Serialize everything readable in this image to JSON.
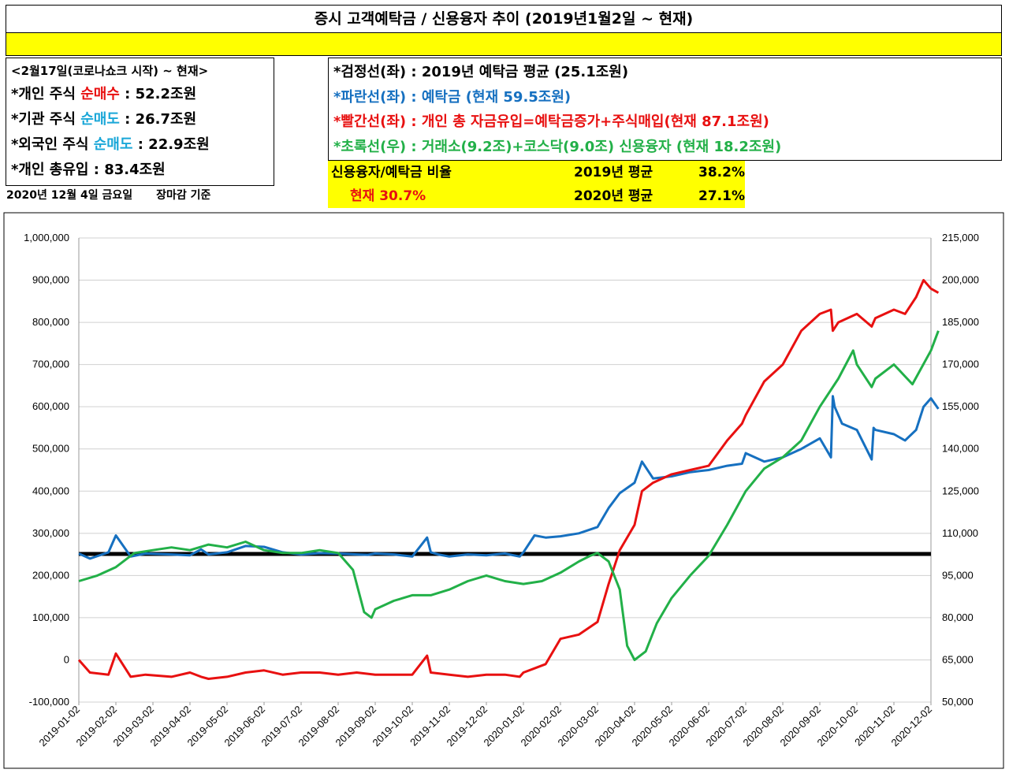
{
  "title": "증시 고객예탁금 / 신용융자 추이 (2019년1월2일 ~ 현재)",
  "left_info": {
    "header": "<2월17일(코로나쇼크 시작) ~ 현재>",
    "rows": [
      {
        "prefix": "*개인 주식 ",
        "highlight": "순매수",
        "suffix": " : 52.2조원",
        "color": "#e81010"
      },
      {
        "prefix": "*기관 주식 ",
        "highlight": "순매도",
        "suffix": " : 26.7조원",
        "color": "#1aa7d8"
      },
      {
        "prefix": "*외국인 주식 ",
        "highlight": "순매도",
        "suffix": " : 22.9조원",
        "color": "#1aa7d8"
      },
      {
        "prefix": "*개인 총유입 : 83.4조원",
        "highlight": "",
        "suffix": "",
        "color": "#000000"
      }
    ]
  },
  "date_line": {
    "date": "2020년 12월 4일 금요일",
    "basis": "장마감 기준"
  },
  "legend_lines": [
    {
      "text": "*검정선(좌) : 2019년 예탁금 평균 (25.1조원)",
      "color": "#000000"
    },
    {
      "text": "*파란선(좌) : 예탁금 (현재 59.5조원)",
      "color": "#1670c0"
    },
    {
      "text": "*빨간선(좌) : 개인 총 자금유입=예탁금증가+주식매입(현재 87.1조원)",
      "color": "#e81010"
    },
    {
      "text": "*초록선(우) : 거래소(9.2조)+코스닥(9.0조) 신용융자 (현재 18.2조원)",
      "color": "#22b048"
    }
  ],
  "ratio_box": {
    "label": "신용융자/예탁금 비율",
    "current": "현재  30.7%",
    "avg2019_label": "2019년 평균",
    "avg2019_value": "38.2%",
    "avg2020_label": "2020년 평균",
    "avg2020_value": "27.1%"
  },
  "chart_data": {
    "type": "line",
    "x_labels": [
      "2019-01-02",
      "2019-02-02",
      "2019-03-02",
      "2019-04-02",
      "2019-05-02",
      "2019-06-02",
      "2019-07-02",
      "2019-08-02",
      "2019-09-02",
      "2019-10-02",
      "2019-11-02",
      "2019-12-02",
      "2020-01-02",
      "2020-02-02",
      "2020-03-02",
      "2020-04-02",
      "2020-05-02",
      "2020-06-02",
      "2020-07-02",
      "2020-08-02",
      "2020-09-02",
      "2020-10-02",
      "2020-11-02",
      "2020-12-02"
    ],
    "y_left": {
      "min": -100000,
      "max": 1000000,
      "ticks": [
        "-100,000",
        "0",
        "100,000",
        "200,000",
        "300,000",
        "400,000",
        "500,000",
        "600,000",
        "700,000",
        "800,000",
        "900,000",
        "1,000,000"
      ]
    },
    "y_right": {
      "min": 50000,
      "max": 215000,
      "ticks": [
        "50,000",
        "65,000",
        "80,000",
        "95,000",
        "110,000",
        "125,000",
        "140,000",
        "155,000",
        "170,000",
        "185,000",
        "200,000",
        "215,000"
      ]
    },
    "reference": {
      "name": "2019년 예탁금 평균",
      "value": 251000,
      "color": "#000000"
    },
    "series": [
      {
        "axis": "left",
        "color": "#1670c0",
        "x": [
          0,
          0.3,
          0.8,
          1.0,
          1.4,
          1.8,
          2.5,
          3.0,
          3.3,
          3.5,
          4.0,
          4.5,
          5.0,
          5.5,
          6.0,
          6.5,
          7.0,
          7.5,
          7.8,
          8.0,
          8.5,
          9.0,
          9.4,
          9.5,
          9.7,
          10.0,
          10.5,
          11.0,
          11.5,
          11.9,
          12.0,
          12.3,
          12.6,
          13.0,
          13.5,
          14.0,
          14.3,
          14.6,
          15.0,
          15.2,
          15.5,
          16.0,
          16.5,
          17.0,
          17.5,
          17.9,
          18.0,
          18.5,
          19.0,
          19.5,
          20.0,
          20.3,
          20.35,
          20.4,
          20.6,
          21.0,
          21.4,
          21.45,
          21.5,
          22.0,
          22.3,
          22.6,
          22.8,
          23.0,
          23.2
        ],
        "y": [
          252000,
          240000,
          255000,
          295000,
          245000,
          252000,
          250000,
          248000,
          262000,
          250000,
          255000,
          270000,
          268000,
          255000,
          250000,
          253000,
          252000,
          250000,
          249000,
          252000,
          250000,
          245000,
          290000,
          255000,
          250000,
          245000,
          250000,
          248000,
          252000,
          245000,
          255000,
          295000,
          290000,
          293000,
          300000,
          315000,
          360000,
          395000,
          420000,
          470000,
          430000,
          435000,
          445000,
          450000,
          460000,
          465000,
          490000,
          470000,
          480000,
          500000,
          525000,
          480000,
          625000,
          600000,
          560000,
          545000,
          475000,
          550000,
          545000,
          535000,
          520000,
          545000,
          600000,
          620000,
          595000
        ]
      },
      {
        "axis": "left",
        "color": "#e81010",
        "x": [
          0,
          0.3,
          0.8,
          1.0,
          1.4,
          1.8,
          2.5,
          3.0,
          3.3,
          3.5,
          4.0,
          4.5,
          5.0,
          5.5,
          6.0,
          6.5,
          7.0,
          7.5,
          8.0,
          8.5,
          9.0,
          9.4,
          9.5,
          10.0,
          10.5,
          11.0,
          11.5,
          11.9,
          12.0,
          12.3,
          12.6,
          13.0,
          13.5,
          14.0,
          14.3,
          14.6,
          15.0,
          15.2,
          15.5,
          16.0,
          16.5,
          17.0,
          17.5,
          17.9,
          18.0,
          18.5,
          19.0,
          19.5,
          20.0,
          20.3,
          20.35,
          20.5,
          21.0,
          21.4,
          21.5,
          22.0,
          22.3,
          22.6,
          22.8,
          23.0,
          23.2
        ],
        "y": [
          0,
          -30000,
          -35000,
          15000,
          -40000,
          -35000,
          -40000,
          -30000,
          -40000,
          -45000,
          -40000,
          -30000,
          -25000,
          -35000,
          -30000,
          -30000,
          -35000,
          -30000,
          -35000,
          -35000,
          -35000,
          10000,
          -30000,
          -35000,
          -40000,
          -35000,
          -35000,
          -40000,
          -30000,
          -20000,
          -10000,
          50000,
          60000,
          90000,
          180000,
          260000,
          320000,
          400000,
          420000,
          440000,
          450000,
          460000,
          520000,
          560000,
          580000,
          660000,
          700000,
          780000,
          820000,
          830000,
          780000,
          800000,
          820000,
          790000,
          810000,
          830000,
          820000,
          860000,
          900000,
          880000,
          870000
        ]
      },
      {
        "axis": "right",
        "color": "#22b048",
        "x": [
          0,
          0.5,
          1.0,
          1.5,
          2.0,
          2.5,
          3.0,
          3.5,
          4.0,
          4.5,
          5.0,
          5.5,
          6.0,
          6.5,
          7.0,
          7.4,
          7.7,
          7.9,
          8.0,
          8.5,
          9.0,
          9.5,
          10.0,
          10.5,
          11.0,
          11.5,
          12.0,
          12.5,
          13.0,
          13.5,
          13.8,
          14.0,
          14.3,
          14.6,
          14.8,
          15.0,
          15.3,
          15.6,
          16.0,
          16.5,
          17.0,
          17.5,
          18.0,
          18.5,
          19.0,
          19.5,
          20.0,
          20.5,
          20.9,
          21.0,
          21.4,
          21.5,
          22.0,
          22.5,
          23.0,
          23.2
        ],
        "y": [
          93000,
          95000,
          98000,
          103000,
          104000,
          105000,
          104000,
          106000,
          105000,
          107000,
          104000,
          103000,
          103000,
          104000,
          103000,
          97000,
          82000,
          80000,
          83000,
          86000,
          88000,
          88000,
          90000,
          93000,
          95000,
          93000,
          92000,
          93000,
          96000,
          100000,
          102000,
          103000,
          100000,
          90000,
          70000,
          65000,
          68000,
          78000,
          87000,
          95000,
          102000,
          113000,
          125000,
          133000,
          137000,
          143000,
          155000,
          165000,
          175000,
          170000,
          162000,
          165000,
          170000,
          163000,
          175000,
          182000
        ]
      }
    ]
  }
}
